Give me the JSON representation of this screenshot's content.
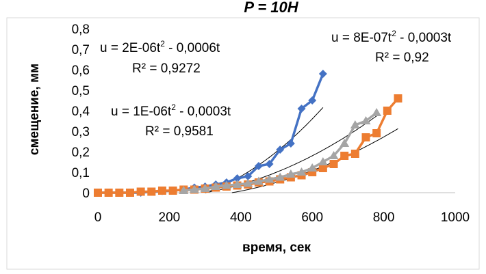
{
  "header_fragment": "P = 10H",
  "chart_data": {
    "type": "scatter",
    "title": "",
    "xlabel": "время, сек",
    "ylabel": "смещение, мм",
    "xlim": [
      0,
      1000
    ],
    "ylim": [
      0,
      0.8
    ],
    "x_ticks": [
      0,
      200,
      400,
      600,
      800,
      1000
    ],
    "y_ticks": [
      0,
      0.1,
      0.2,
      0.3,
      0.4,
      0.5,
      0.6,
      0.7,
      0.8
    ],
    "x_tick_labels": [
      "0",
      "200",
      "400",
      "600",
      "800",
      "1000"
    ],
    "y_tick_labels": [
      "0",
      "0,1",
      "0,2",
      "0,3",
      "0,4",
      "0,5",
      "0,6",
      "0,7",
      "0,8"
    ],
    "grid": false,
    "legend": "none",
    "series": [
      {
        "color": "#4472C4",
        "marker": "diamond",
        "points": [
          [
            0,
            0
          ],
          [
            30,
            0
          ],
          [
            60,
            0
          ],
          [
            90,
            0
          ],
          [
            120,
            0
          ],
          [
            150,
            0.005
          ],
          [
            180,
            0.008
          ],
          [
            210,
            0.01
          ],
          [
            240,
            0.015
          ],
          [
            270,
            0.025
          ],
          [
            300,
            0.03
          ],
          [
            330,
            0.04
          ],
          [
            360,
            0.05
          ],
          [
            390,
            0.07
          ],
          [
            420,
            0.08
          ],
          [
            450,
            0.13
          ],
          [
            480,
            0.14
          ],
          [
            510,
            0.21
          ],
          [
            540,
            0.24
          ],
          [
            570,
            0.41
          ],
          [
            600,
            0.45
          ],
          [
            630,
            0.58
          ]
        ]
      },
      {
        "color": "#ED7D31",
        "marker": "square",
        "points": [
          [
            0,
            0
          ],
          [
            30,
            0
          ],
          [
            60,
            0
          ],
          [
            90,
            0
          ],
          [
            120,
            0.005
          ],
          [
            150,
            0.005
          ],
          [
            180,
            0.01
          ],
          [
            210,
            0.01
          ],
          [
            240,
            0.015
          ],
          [
            270,
            0.015
          ],
          [
            300,
            0.02
          ],
          [
            330,
            0.025
          ],
          [
            360,
            0.03
          ],
          [
            390,
            0.035
          ],
          [
            420,
            0.04
          ],
          [
            450,
            0.05
          ],
          [
            480,
            0.055
          ],
          [
            510,
            0.065
          ],
          [
            540,
            0.075
          ],
          [
            570,
            0.085
          ],
          [
            600,
            0.1
          ],
          [
            630,
            0.12
          ],
          [
            660,
            0.14
          ],
          [
            690,
            0.18
          ],
          [
            720,
            0.19
          ],
          [
            750,
            0.27
          ],
          [
            780,
            0.29
          ],
          [
            810,
            0.4
          ],
          [
            840,
            0.46
          ]
        ]
      },
      {
        "color": "#A5A5A5",
        "marker": "triangle",
        "points": [
          [
            240,
            0.01
          ],
          [
            270,
            0.015
          ],
          [
            300,
            0.02
          ],
          [
            330,
            0.03
          ],
          [
            360,
            0.035
          ],
          [
            390,
            0.04
          ],
          [
            420,
            0.045
          ],
          [
            450,
            0.055
          ],
          [
            480,
            0.065
          ],
          [
            510,
            0.075
          ],
          [
            540,
            0.09
          ],
          [
            570,
            0.1
          ],
          [
            600,
            0.12
          ],
          [
            630,
            0.15
          ],
          [
            660,
            0.18
          ],
          [
            690,
            0.24
          ],
          [
            720,
            0.33
          ],
          [
            750,
            0.35
          ],
          [
            780,
            0.39
          ]
        ]
      }
    ],
    "trendlines": [
      {
        "a": 2e-06,
        "b": -0.0006,
        "x_range": [
          300,
          630
        ]
      },
      {
        "a": 8e-07,
        "b": -0.0003,
        "x_range": [
          375,
          840
        ]
      },
      {
        "a": 1e-06,
        "b": -0.0003,
        "x_range": [
          300,
          780
        ]
      }
    ],
    "annotations": [
      {
        "eq_prefix": "u = 2E-06t",
        "eq_suffix": " - 0,0006t",
        "r2": "R² = 0,9272"
      },
      {
        "eq_prefix": "u = 8E-07t",
        "eq_suffix": " - 0,0003t",
        "r2": "R² = 0,92"
      },
      {
        "eq_prefix": "u = 1E-06t",
        "eq_suffix": " - 0,0003t",
        "r2": "R² = 0,9581"
      }
    ]
  }
}
